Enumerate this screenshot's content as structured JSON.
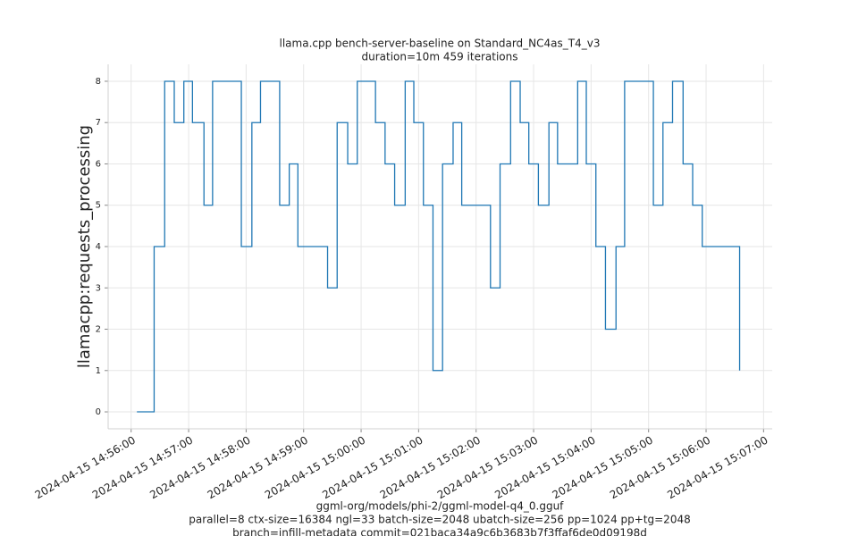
{
  "chart_data": {
    "type": "line",
    "drawstyle": "steps-post",
    "title": [
      "llama.cpp bench-server-baseline on Standard_NC4as_T4_v3",
      "duration=10m 459 iterations"
    ],
    "xlabel": [
      "ggml-org/models/phi-2/ggml-model-q4_0.gguf",
      "parallel=8 ctx-size=16384 ngl=33 batch-size=2048 ubatch-size=256 pp=1024 pp+tg=2048",
      "branch=infill-metadata commit=021baca34a9c6b3683b7f3ffaf6de0d09198d"
    ],
    "ylabel": "llamacpp:requests_processing",
    "x": [
      "2024-04-15 14:56:06",
      "2024-04-15 14:56:24",
      "2024-04-15 14:56:35",
      "2024-04-15 14:56:45",
      "2024-04-15 14:56:55",
      "2024-04-15 14:57:04",
      "2024-04-15 14:57:16",
      "2024-04-15 14:57:25",
      "2024-04-15 14:57:55",
      "2024-04-15 14:58:06",
      "2024-04-15 14:58:15",
      "2024-04-15 14:58:35",
      "2024-04-15 14:58:45",
      "2024-04-15 14:58:54",
      "2024-04-15 14:59:25",
      "2024-04-15 14:59:35",
      "2024-04-15 14:59:46",
      "2024-04-15 14:59:56",
      "2024-04-15 15:00:15",
      "2024-04-15 15:00:25",
      "2024-04-15 15:00:35",
      "2024-04-15 15:00:46",
      "2024-04-15 15:00:55",
      "2024-04-15 15:01:05",
      "2024-04-15 15:01:15",
      "2024-04-15 15:01:25",
      "2024-04-15 15:01:36",
      "2024-04-15 15:01:45",
      "2024-04-15 15:02:15",
      "2024-04-15 15:02:25",
      "2024-04-15 15:02:36",
      "2024-04-15 15:02:46",
      "2024-04-15 15:02:55",
      "2024-04-15 15:03:05",
      "2024-04-15 15:03:16",
      "2024-04-15 15:03:25",
      "2024-04-15 15:03:46",
      "2024-04-15 15:03:55",
      "2024-04-15 15:04:05",
      "2024-04-15 15:04:15",
      "2024-04-15 15:04:26",
      "2024-04-15 15:04:35",
      "2024-04-15 15:05:05",
      "2024-04-15 15:05:15",
      "2024-04-15 15:05:25",
      "2024-04-15 15:05:36",
      "2024-04-15 15:05:46",
      "2024-04-15 15:05:56",
      "2024-04-15 15:06:35"
    ],
    "series": [
      {
        "color": "#1f77b4",
        "values": [
          0,
          4,
          8,
          7,
          8,
          7,
          5,
          8,
          4,
          7,
          8,
          5,
          6,
          4,
          3,
          7,
          6,
          8,
          7,
          6,
          5,
          8,
          7,
          5,
          1,
          6,
          7,
          5,
          3,
          6,
          8,
          7,
          6,
          5,
          7,
          6,
          8,
          6,
          4,
          2,
          4,
          8,
          5,
          7,
          8,
          6,
          5,
          4,
          1
        ]
      }
    ],
    "xlim": [
      "2024-04-15 14:55:36",
      "2024-04-15 15:07:09"
    ],
    "xticks": [
      "2024-04-15 14:56:00",
      "2024-04-15 14:57:00",
      "2024-04-15 14:58:00",
      "2024-04-15 14:59:00",
      "2024-04-15 15:00:00",
      "2024-04-15 15:01:00",
      "2024-04-15 15:02:00",
      "2024-04-15 15:03:00",
      "2024-04-15 15:04:00",
      "2024-04-15 15:05:00",
      "2024-04-15 15:06:00",
      "2024-04-15 15:07:00"
    ],
    "ylim": [
      -0.41,
      8.41
    ],
    "yticks": [
      0,
      1,
      2,
      3,
      4,
      5,
      6,
      7,
      8
    ],
    "grid": true
  }
}
